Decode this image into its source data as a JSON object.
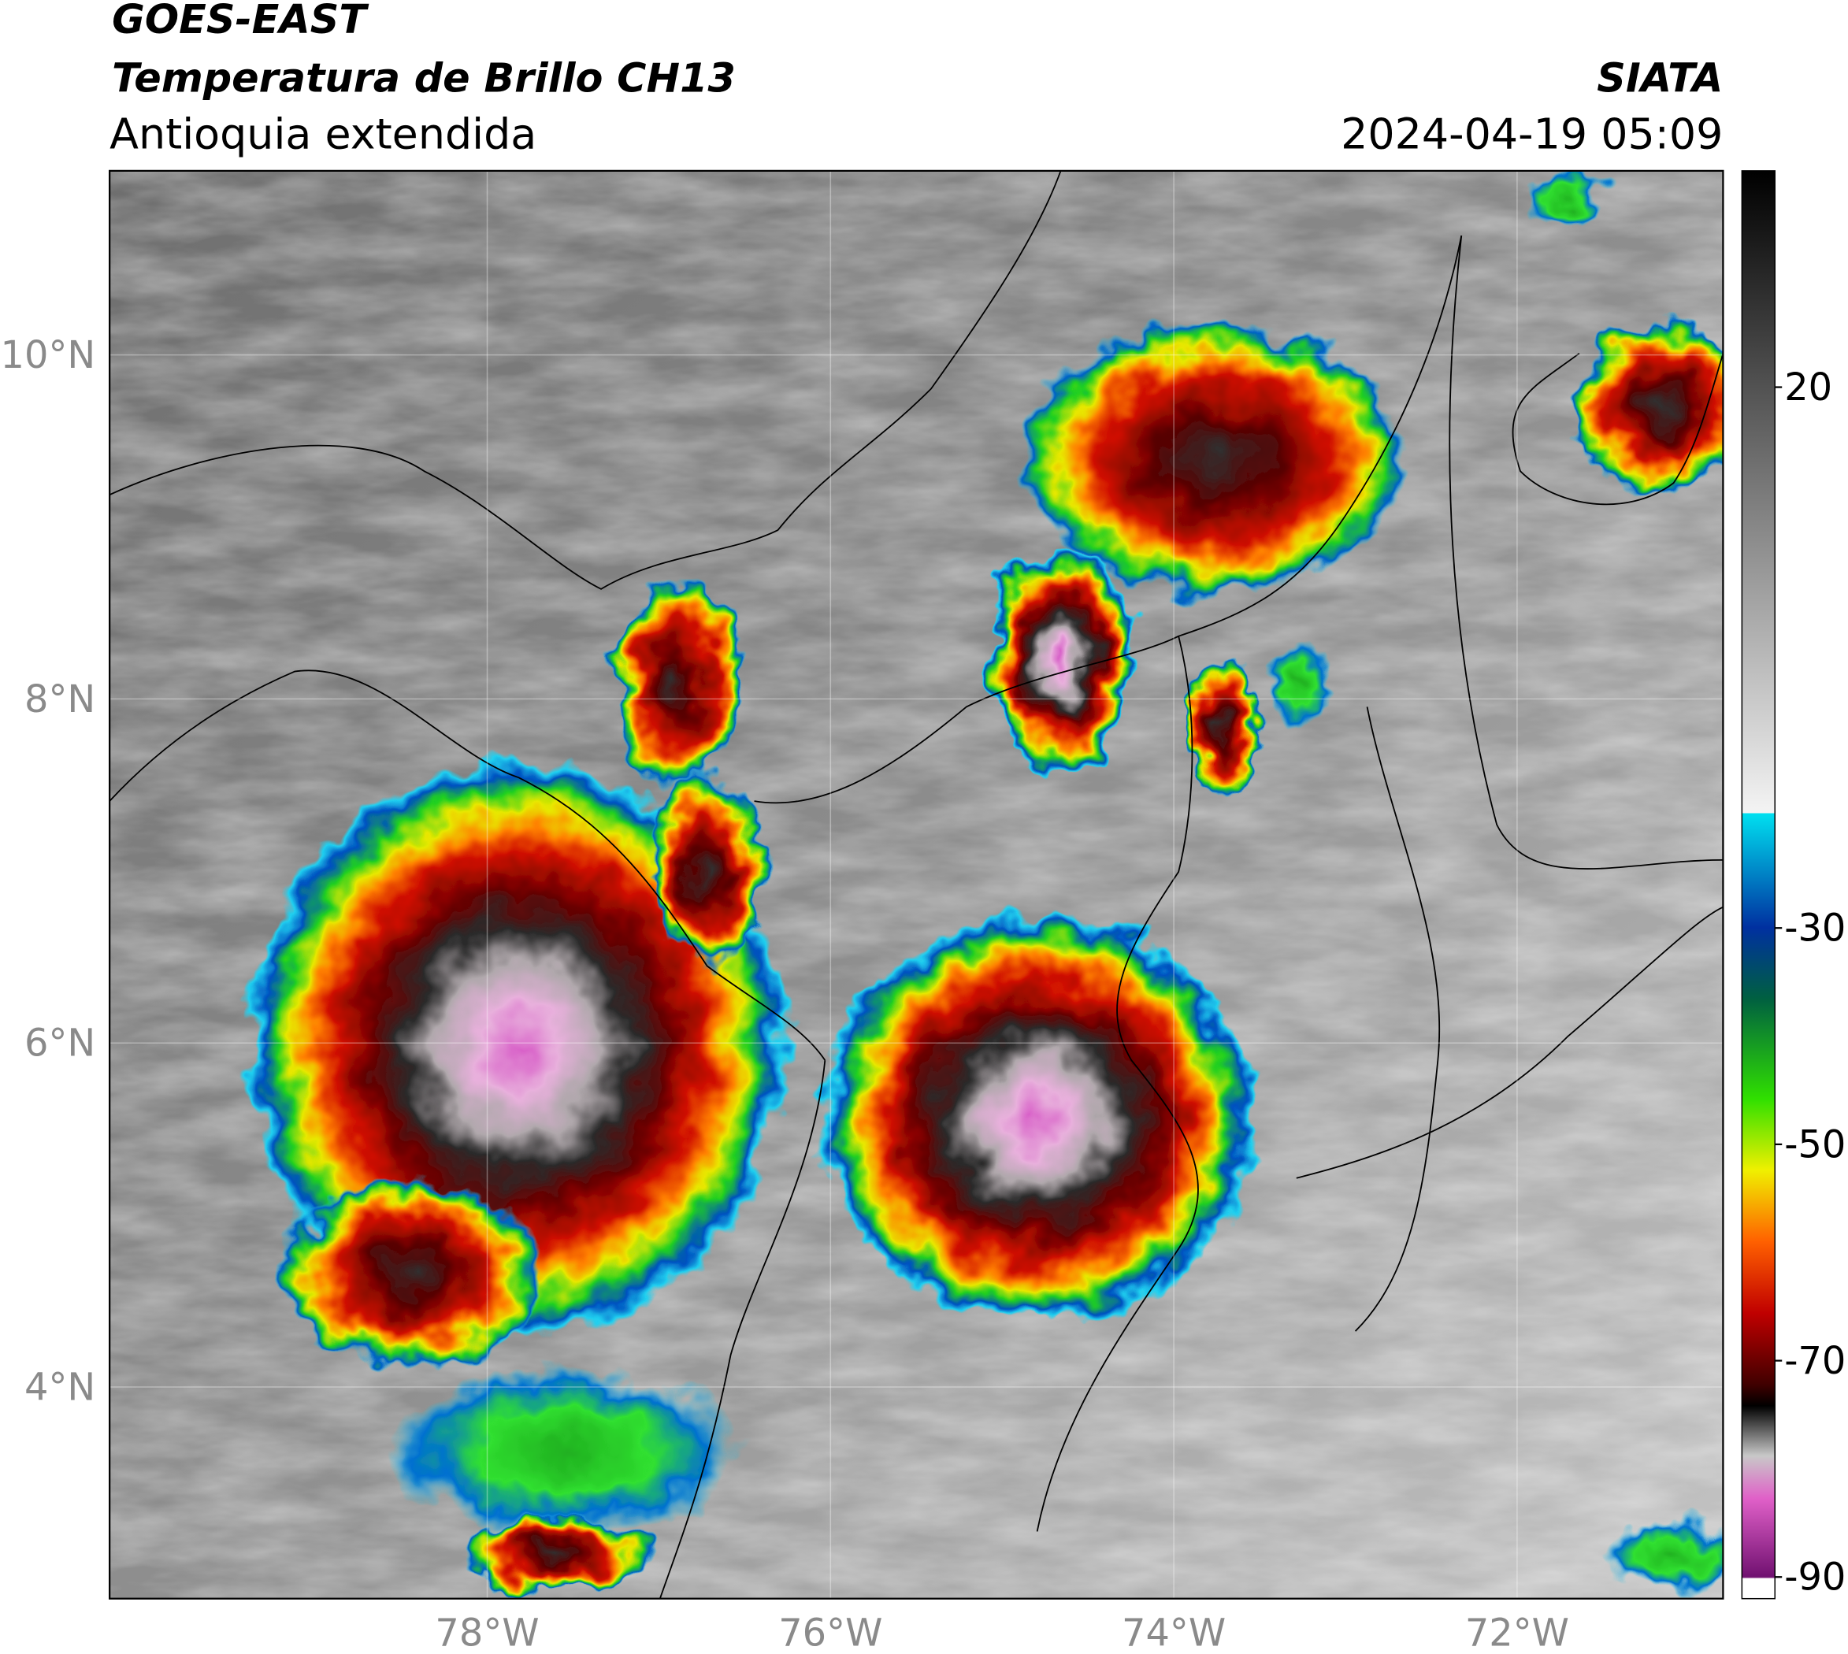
{
  "header": {
    "title": "GOES-EAST",
    "subtitle": "Temperatura de Brillo CH13",
    "region": "Antioquia extendida",
    "source": "SIATA",
    "datetime": "2024-04-19 05:09"
  },
  "map": {
    "xlim": [
      -80.2,
      -70.8
    ],
    "ylim": [
      2.77,
      11.07
    ],
    "xticks": [
      {
        "value": -78,
        "label": "78°W"
      },
      {
        "value": -76,
        "label": "76°W"
      },
      {
        "value": -74,
        "label": "74°W"
      },
      {
        "value": -72,
        "label": "72°W"
      }
    ],
    "yticks": [
      {
        "value": 4,
        "label": "4°N"
      },
      {
        "value": 6,
        "label": "6°N"
      },
      {
        "value": 8,
        "label": "8°N"
      },
      {
        "value": 10,
        "label": "10°N"
      }
    ]
  },
  "colorbar": {
    "lim": [
      -92,
      40
    ],
    "ticks": [
      20,
      -30,
      -50,
      -70,
      -90
    ]
  }
}
